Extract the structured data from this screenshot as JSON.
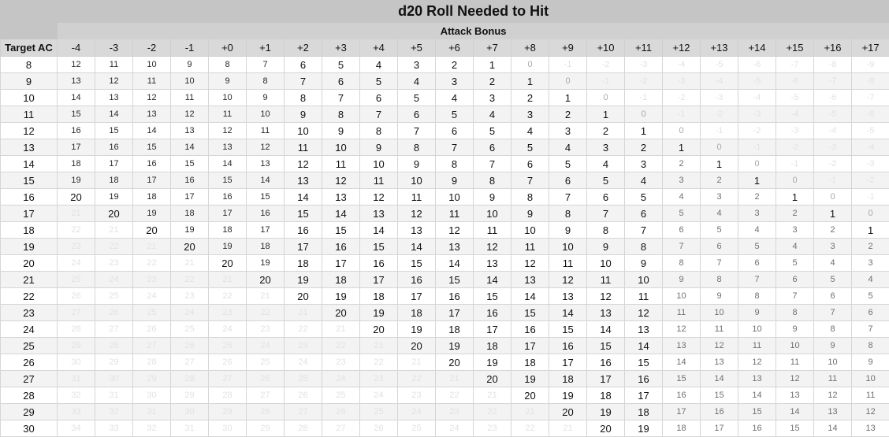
{
  "title": "d20 Roll Needed to Hit",
  "subtitle": "Attack Bonus",
  "row_header": "Target AC",
  "bonus_labels": [
    "-4",
    "-3",
    "-2",
    "-1",
    "+0",
    "+1",
    "+2",
    "+3",
    "+4",
    "+5",
    "+6",
    "+7",
    "+8",
    "+9",
    "+10",
    "+11",
    "+12",
    "+13",
    "+14",
    "+15",
    "+16",
    "+17"
  ],
  "rows": [
    {
      "ac": "8",
      "cells": [
        "12",
        "11",
        "10",
        "9",
        "8",
        "7",
        "6",
        "5",
        "4",
        "3",
        "2",
        "1",
        "0",
        "-1",
        "-2",
        "-3",
        "-4",
        "-5",
        "-6",
        "-7",
        "-8",
        "-9"
      ]
    },
    {
      "ac": "9",
      "cells": [
        "13",
        "12",
        "11",
        "10",
        "9",
        "8",
        "7",
        "6",
        "5",
        "4",
        "3",
        "2",
        "1",
        "0",
        "-1",
        "-2",
        "-3",
        "-4",
        "-5",
        "-6",
        "-7",
        "-8"
      ]
    },
    {
      "ac": "10",
      "cells": [
        "14",
        "13",
        "12",
        "11",
        "10",
        "9",
        "8",
        "7",
        "6",
        "5",
        "4",
        "3",
        "2",
        "1",
        "0",
        "-1",
        "-2",
        "-3",
        "-4",
        "-5",
        "-6",
        "-7"
      ]
    },
    {
      "ac": "11",
      "cells": [
        "15",
        "14",
        "13",
        "12",
        "11",
        "10",
        "9",
        "8",
        "7",
        "6",
        "5",
        "4",
        "3",
        "2",
        "1",
        "0",
        "-1",
        "-2",
        "-3",
        "-4",
        "-5",
        "-6"
      ]
    },
    {
      "ac": "12",
      "cells": [
        "16",
        "15",
        "14",
        "13",
        "12",
        "11",
        "10",
        "9",
        "8",
        "7",
        "6",
        "5",
        "4",
        "3",
        "2",
        "1",
        "0",
        "-1",
        "-2",
        "-3",
        "-4",
        "-5"
      ]
    },
    {
      "ac": "13",
      "cells": [
        "17",
        "16",
        "15",
        "14",
        "13",
        "12",
        "11",
        "10",
        "9",
        "8",
        "7",
        "6",
        "5",
        "4",
        "3",
        "2",
        "1",
        "0",
        "-1",
        "-2",
        "-3",
        "-4"
      ]
    },
    {
      "ac": "14",
      "cells": [
        "18",
        "17",
        "16",
        "15",
        "14",
        "13",
        "12",
        "11",
        "10",
        "9",
        "8",
        "7",
        "6",
        "5",
        "4",
        "3",
        "2",
        "1",
        "0",
        "-1",
        "-2",
        "-3"
      ]
    },
    {
      "ac": "15",
      "cells": [
        "19",
        "18",
        "17",
        "16",
        "15",
        "14",
        "13",
        "12",
        "11",
        "10",
        "9",
        "8",
        "7",
        "6",
        "5",
        "4",
        "3",
        "2",
        "1",
        "0",
        "-1",
        "-2"
      ]
    },
    {
      "ac": "16",
      "cells": [
        "20",
        "19",
        "18",
        "17",
        "16",
        "15",
        "14",
        "13",
        "12",
        "11",
        "10",
        "9",
        "8",
        "7",
        "6",
        "5",
        "4",
        "3",
        "2",
        "1",
        "0",
        "-1"
      ]
    },
    {
      "ac": "17",
      "cells": [
        "21",
        "20",
        "19",
        "18",
        "17",
        "16",
        "15",
        "14",
        "13",
        "12",
        "11",
        "10",
        "9",
        "8",
        "7",
        "6",
        "5",
        "4",
        "3",
        "2",
        "1",
        "0"
      ]
    },
    {
      "ac": "18",
      "cells": [
        "22",
        "21",
        "20",
        "19",
        "18",
        "17",
        "16",
        "15",
        "14",
        "13",
        "12",
        "11",
        "10",
        "9",
        "8",
        "7",
        "6",
        "5",
        "4",
        "3",
        "2",
        "1"
      ]
    },
    {
      "ac": "19",
      "cells": [
        "23",
        "22",
        "21",
        "20",
        "19",
        "18",
        "17",
        "16",
        "15",
        "14",
        "13",
        "12",
        "11",
        "10",
        "9",
        "8",
        "7",
        "6",
        "5",
        "4",
        "3",
        "2"
      ]
    },
    {
      "ac": "20",
      "cells": [
        "24",
        "23",
        "22",
        "21",
        "20",
        "19",
        "18",
        "17",
        "16",
        "15",
        "14",
        "13",
        "12",
        "11",
        "10",
        "9",
        "8",
        "7",
        "6",
        "5",
        "4",
        "3"
      ]
    },
    {
      "ac": "21",
      "cells": [
        "25",
        "24",
        "23",
        "22",
        "21",
        "20",
        "19",
        "18",
        "17",
        "16",
        "15",
        "14",
        "13",
        "12",
        "11",
        "10",
        "9",
        "8",
        "7",
        "6",
        "5",
        "4"
      ]
    },
    {
      "ac": "22",
      "cells": [
        "26",
        "25",
        "24",
        "23",
        "22",
        "21",
        "20",
        "19",
        "18",
        "17",
        "16",
        "15",
        "14",
        "13",
        "12",
        "11",
        "10",
        "9",
        "8",
        "7",
        "6",
        "5"
      ]
    },
    {
      "ac": "23",
      "cells": [
        "27",
        "26",
        "25",
        "24",
        "23",
        "22",
        "21",
        "20",
        "19",
        "18",
        "17",
        "16",
        "15",
        "14",
        "13",
        "12",
        "11",
        "10",
        "9",
        "8",
        "7",
        "6"
      ]
    },
    {
      "ac": "24",
      "cells": [
        "28",
        "27",
        "26",
        "25",
        "24",
        "23",
        "22",
        "21",
        "20",
        "19",
        "18",
        "17",
        "16",
        "15",
        "14",
        "13",
        "12",
        "11",
        "10",
        "9",
        "8",
        "7"
      ]
    },
    {
      "ac": "25",
      "cells": [
        "29",
        "28",
        "27",
        "26",
        "25",
        "24",
        "23",
        "22",
        "21",
        "20",
        "19",
        "18",
        "17",
        "16",
        "15",
        "14",
        "13",
        "12",
        "11",
        "10",
        "9",
        "8"
      ]
    },
    {
      "ac": "26",
      "cells": [
        "30",
        "29",
        "28",
        "27",
        "26",
        "25",
        "24",
        "23",
        "22",
        "21",
        "20",
        "19",
        "18",
        "17",
        "16",
        "15",
        "14",
        "13",
        "12",
        "11",
        "10",
        "9"
      ]
    },
    {
      "ac": "27",
      "cells": [
        "31",
        "30",
        "29",
        "28",
        "27",
        "26",
        "25",
        "24",
        "23",
        "22",
        "21",
        "20",
        "19",
        "18",
        "17",
        "16",
        "15",
        "14",
        "13",
        "12",
        "11",
        "10"
      ]
    },
    {
      "ac": "28",
      "cells": [
        "32",
        "31",
        "30",
        "29",
        "28",
        "27",
        "26",
        "25",
        "24",
        "23",
        "22",
        "21",
        "20",
        "19",
        "18",
        "17",
        "16",
        "15",
        "14",
        "13",
        "12",
        "11"
      ]
    },
    {
      "ac": "29",
      "cells": [
        "33",
        "32",
        "31",
        "30",
        "29",
        "28",
        "27",
        "26",
        "25",
        "24",
        "23",
        "22",
        "21",
        "20",
        "19",
        "18",
        "17",
        "16",
        "15",
        "14",
        "13",
        "12"
      ]
    },
    {
      "ac": "30",
      "cells": [
        "34",
        "33",
        "32",
        "31",
        "30",
        "29",
        "28",
        "27",
        "26",
        "25",
        "24",
        "23",
        "22",
        "21",
        "20",
        "19",
        "18",
        "17",
        "16",
        "15",
        "14",
        "13"
      ]
    }
  ]
}
